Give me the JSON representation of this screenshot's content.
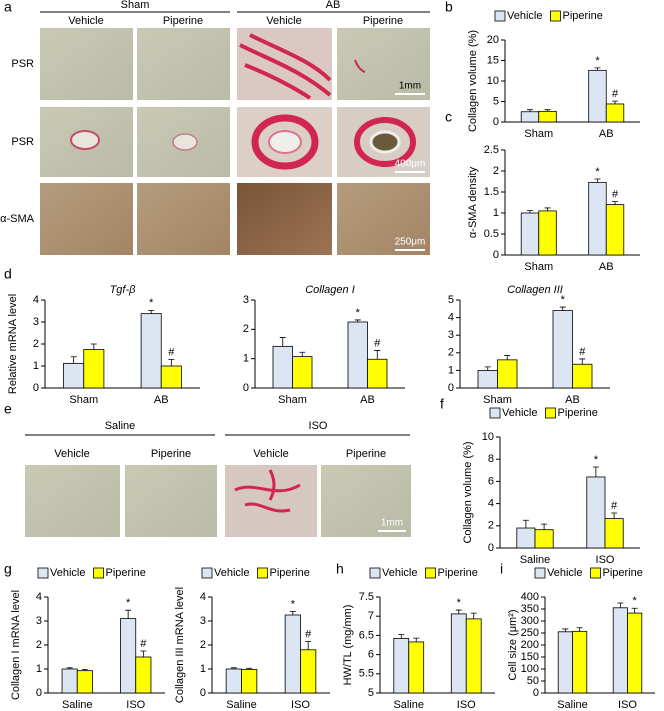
{
  "figure": {
    "panel_letters": [
      "a",
      "d",
      "e",
      "g",
      "h",
      "i"
    ],
    "panel_a": {
      "groups": [
        "Sham",
        "AB"
      ],
      "columns": [
        "Vehicle",
        "Piperine",
        "Vehicle",
        "Piperine"
      ],
      "rows": [
        "PSR",
        "PSR",
        "α-SMA"
      ],
      "scale_bars": [
        "1mm",
        "400μm",
        "250μm"
      ]
    },
    "panel_e": {
      "groups": [
        "Saline",
        "ISO"
      ],
      "columns": [
        "Vehicle",
        "Piperine",
        "Vehicle",
        "Piperine"
      ],
      "scale_bar": "1mm"
    }
  },
  "chart_data": [
    {
      "type": "bar",
      "panel": "b",
      "y_label": "Collagen volume (%)",
      "categories": [
        "Sham",
        "AB"
      ],
      "ylim": [
        0,
        20
      ],
      "yticks": [
        0,
        5,
        10,
        15,
        20
      ],
      "legend": true,
      "series": [
        {
          "name": "Vehicle",
          "color": "#dce6f2",
          "values": [
            2.5,
            12.6
          ],
          "errors": [
            0.5,
            0.6
          ],
          "annotations": [
            null,
            "*"
          ]
        },
        {
          "name": "Piperine",
          "color": "#ffff00",
          "values": [
            2.6,
            4.4
          ],
          "errors": [
            0.4,
            0.7
          ],
          "annotations": [
            null,
            "#"
          ]
        }
      ]
    },
    {
      "type": "bar",
      "panel": "c",
      "y_label": "α-SMA density",
      "categories": [
        "Sham",
        "AB"
      ],
      "ylim": [
        0,
        2.5
      ],
      "yticks": [
        0,
        0.5,
        1,
        1.5,
        2,
        2.5
      ],
      "legend": false,
      "series": [
        {
          "color": "#dce6f2",
          "values": [
            1.0,
            1.73
          ],
          "errors": [
            0.06,
            0.08
          ],
          "annotations": [
            null,
            "*"
          ]
        },
        {
          "color": "#ffff00",
          "values": [
            1.05,
            1.2
          ],
          "errors": [
            0.07,
            0.07
          ],
          "annotations": [
            null,
            "#"
          ]
        }
      ]
    },
    {
      "type": "bar",
      "title": "Tgf-β",
      "y_label": "Relative mRNA level",
      "categories": [
        "Sham",
        "AB"
      ],
      "ylim": [
        0,
        4
      ],
      "yticks": [
        0,
        1,
        2,
        3,
        4
      ],
      "legend": false,
      "series": [
        {
          "color": "#dce6f2",
          "values": [
            1.12,
            3.38
          ],
          "errors": [
            0.3,
            0.15
          ],
          "annotations": [
            null,
            "*"
          ]
        },
        {
          "color": "#ffff00",
          "values": [
            1.75,
            1.0
          ],
          "errors": [
            0.25,
            0.3
          ],
          "annotations": [
            null,
            "#"
          ]
        }
      ]
    },
    {
      "type": "bar",
      "title": "Collagen I",
      "categories": [
        "Sham",
        "AB"
      ],
      "ylim": [
        0,
        3
      ],
      "yticks": [
        0,
        1,
        2,
        3
      ],
      "legend": false,
      "series": [
        {
          "color": "#dce6f2",
          "values": [
            1.42,
            2.25
          ],
          "errors": [
            0.3,
            0.07
          ],
          "annotations": [
            null,
            "*"
          ]
        },
        {
          "color": "#ffff00",
          "values": [
            1.07,
            0.98
          ],
          "errors": [
            0.15,
            0.3
          ],
          "annotations": [
            null,
            "#"
          ]
        }
      ]
    },
    {
      "type": "bar",
      "title": "Collagen III",
      "categories": [
        "Sham",
        "AB"
      ],
      "ylim": [
        0,
        5
      ],
      "yticks": [
        0,
        1,
        2,
        3,
        4,
        5
      ],
      "legend": false,
      "series": [
        {
          "color": "#dce6f2",
          "values": [
            1.0,
            4.4
          ],
          "errors": [
            0.2,
            0.2
          ],
          "annotations": [
            null,
            "*"
          ]
        },
        {
          "color": "#ffff00",
          "values": [
            1.6,
            1.35
          ],
          "errors": [
            0.25,
            0.3
          ],
          "annotations": [
            null,
            "#"
          ]
        }
      ]
    },
    {
      "type": "bar",
      "panel": "f",
      "y_label": "Collagen volume (%)",
      "categories": [
        "Saline",
        "ISO"
      ],
      "ylim": [
        0,
        10
      ],
      "yticks": [
        0,
        2,
        4,
        6,
        8,
        10
      ],
      "legend": true,
      "series": [
        {
          "name": "Vehicle",
          "color": "#dce6f2",
          "values": [
            1.8,
            6.4
          ],
          "errors": [
            0.7,
            0.9
          ],
          "annotations": [
            null,
            "*"
          ]
        },
        {
          "name": "Piperine",
          "color": "#ffff00",
          "values": [
            1.65,
            2.65
          ],
          "errors": [
            0.5,
            0.5
          ],
          "annotations": [
            null,
            "#"
          ]
        }
      ]
    },
    {
      "type": "bar",
      "y_label": "Collagen I mRNA level",
      "categories": [
        "Saline",
        "ISO"
      ],
      "ylim": [
        0,
        4
      ],
      "yticks": [
        0,
        1,
        2,
        3,
        4
      ],
      "legend": true,
      "series": [
        {
          "name": "Vehicle",
          "color": "#dce6f2",
          "values": [
            1.0,
            3.1
          ],
          "errors": [
            0.05,
            0.35
          ],
          "annotations": [
            null,
            "*"
          ]
        },
        {
          "name": "Piperine",
          "color": "#ffff00",
          "values": [
            0.93,
            1.5
          ],
          "errors": [
            0.05,
            0.25
          ],
          "annotations": [
            null,
            "#"
          ]
        }
      ]
    },
    {
      "type": "bar",
      "y_label": "Collagen III mRNA level",
      "categories": [
        "Saline",
        "ISO"
      ],
      "ylim": [
        0,
        4
      ],
      "yticks": [
        0,
        1,
        2,
        3,
        4
      ],
      "legend": true,
      "series": [
        {
          "name": "Vehicle",
          "color": "#dce6f2",
          "values": [
            1.0,
            3.25
          ],
          "errors": [
            0.05,
            0.15
          ],
          "annotations": [
            null,
            "*"
          ]
        },
        {
          "name": "Piperine",
          "color": "#ffff00",
          "values": [
            0.98,
            1.8
          ],
          "errors": [
            0.05,
            0.35
          ],
          "annotations": [
            null,
            "#"
          ]
        }
      ]
    },
    {
      "type": "bar",
      "y_label": "HW/TL (mg/mm)",
      "categories": [
        "Saline",
        "ISO"
      ],
      "ylim": [
        5,
        7.5
      ],
      "yticks": [
        5,
        5.5,
        6,
        6.5,
        7,
        7.5
      ],
      "legend": true,
      "series": [
        {
          "name": "Vehicle",
          "color": "#dce6f2",
          "values": [
            6.42,
            7.06
          ],
          "errors": [
            0.1,
            0.1
          ],
          "annotations": [
            null,
            "*"
          ]
        },
        {
          "name": "Piperine",
          "color": "#ffff00",
          "values": [
            6.33,
            6.93
          ],
          "errors": [
            0.1,
            0.15
          ],
          "annotations": [
            null,
            null
          ]
        }
      ]
    },
    {
      "type": "bar",
      "y_label": "Cell size (μm²)",
      "categories": [
        "Saline",
        "ISO"
      ],
      "ylim": [
        0,
        400
      ],
      "yticks": [
        0,
        50,
        100,
        150,
        200,
        250,
        300,
        350,
        400
      ],
      "legend": true,
      "series": [
        {
          "name": "Vehicle",
          "color": "#dce6f2",
          "values": [
            255,
            355
          ],
          "errors": [
            12,
            20
          ],
          "annotations": [
            null,
            null
          ]
        },
        {
          "name": "Piperine",
          "color": "#ffff00",
          "values": [
            257,
            333
          ],
          "errors": [
            15,
            20
          ],
          "annotations": [
            null,
            "*"
          ]
        }
      ]
    }
  ]
}
